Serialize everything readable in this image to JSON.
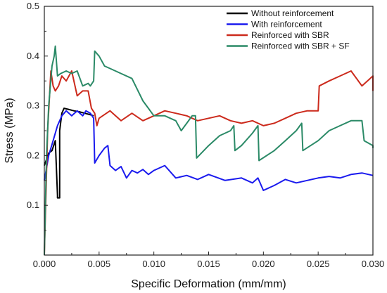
{
  "chart_data": {
    "type": "line",
    "title": "",
    "xlabel": "Specific Deformation (mm/mm)",
    "ylabel": "Stress (MPa)",
    "xlim": [
      0,
      0.03
    ],
    "ylim": [
      0,
      0.5
    ],
    "xticks": [
      "0.000",
      "0.005",
      "0.010",
      "0.015",
      "0.020",
      "0.025",
      "0.030"
    ],
    "yticks": [
      "0.1",
      "0.2",
      "0.3",
      "0.4",
      "0.5"
    ],
    "legend_position": "top-right",
    "grid": false,
    "series": [
      {
        "name": "Without reinforcement",
        "color": "#000000",
        "points": [
          [
            0.0,
            0.18
          ],
          [
            0.0004,
            0.205
          ],
          [
            0.0007,
            0.21
          ],
          [
            0.001,
            0.23
          ],
          [
            0.0012,
            0.12
          ],
          [
            0.0012,
            0.115
          ],
          [
            0.0014,
            0.115
          ],
          [
            0.0014,
            0.25
          ],
          [
            0.0016,
            0.285
          ],
          [
            0.0018,
            0.295
          ],
          [
            0.0022,
            0.293
          ],
          [
            0.0027,
            0.29
          ],
          [
            0.0032,
            0.288
          ],
          [
            0.0037,
            0.285
          ],
          [
            0.0042,
            0.282
          ],
          [
            0.0045,
            0.28
          ]
        ]
      },
      {
        "name": "With reinforcement",
        "color": "#1a1aee",
        "points": [
          [
            0.0,
            0.15
          ],
          [
            0.0004,
            0.2
          ],
          [
            0.0008,
            0.23
          ],
          [
            0.0012,
            0.26
          ],
          [
            0.0016,
            0.28
          ],
          [
            0.002,
            0.29
          ],
          [
            0.0025,
            0.28
          ],
          [
            0.003,
            0.29
          ],
          [
            0.0035,
            0.28
          ],
          [
            0.0038,
            0.29
          ],
          [
            0.0042,
            0.285
          ],
          [
            0.0045,
            0.275
          ],
          [
            0.0046,
            0.185
          ],
          [
            0.005,
            0.2
          ],
          [
            0.0055,
            0.215
          ],
          [
            0.0058,
            0.22
          ],
          [
            0.006,
            0.18
          ],
          [
            0.0065,
            0.17
          ],
          [
            0.007,
            0.178
          ],
          [
            0.0075,
            0.155
          ],
          [
            0.008,
            0.17
          ],
          [
            0.0085,
            0.165
          ],
          [
            0.009,
            0.172
          ],
          [
            0.0095,
            0.162
          ],
          [
            0.01,
            0.17
          ],
          [
            0.011,
            0.18
          ],
          [
            0.012,
            0.155
          ],
          [
            0.013,
            0.16
          ],
          [
            0.014,
            0.152
          ],
          [
            0.015,
            0.162
          ],
          [
            0.0165,
            0.15
          ],
          [
            0.018,
            0.155
          ],
          [
            0.019,
            0.145
          ],
          [
            0.0195,
            0.155
          ],
          [
            0.02,
            0.13
          ],
          [
            0.021,
            0.14
          ],
          [
            0.022,
            0.152
          ],
          [
            0.023,
            0.145
          ],
          [
            0.024,
            0.15
          ],
          [
            0.025,
            0.155
          ],
          [
            0.026,
            0.158
          ],
          [
            0.027,
            0.155
          ],
          [
            0.028,
            0.162
          ],
          [
            0.029,
            0.165
          ],
          [
            0.03,
            0.16
          ]
        ]
      },
      {
        "name": "Reinforced with SBR",
        "color": "#cc2a1c",
        "points": [
          [
            0.0,
            0.0
          ],
          [
            0.0003,
            0.25
          ],
          [
            0.0006,
            0.37
          ],
          [
            0.0008,
            0.34
          ],
          [
            0.001,
            0.33
          ],
          [
            0.0013,
            0.34
          ],
          [
            0.0016,
            0.36
          ],
          [
            0.002,
            0.35
          ],
          [
            0.0025,
            0.37
          ],
          [
            0.003,
            0.32
          ],
          [
            0.0035,
            0.33
          ],
          [
            0.004,
            0.33
          ],
          [
            0.0043,
            0.295
          ],
          [
            0.0046,
            0.285
          ],
          [
            0.0048,
            0.26
          ],
          [
            0.005,
            0.275
          ],
          [
            0.006,
            0.29
          ],
          [
            0.007,
            0.27
          ],
          [
            0.008,
            0.285
          ],
          [
            0.009,
            0.27
          ],
          [
            0.01,
            0.28
          ],
          [
            0.011,
            0.29
          ],
          [
            0.012,
            0.285
          ],
          [
            0.013,
            0.28
          ],
          [
            0.014,
            0.27
          ],
          [
            0.015,
            0.275
          ],
          [
            0.016,
            0.28
          ],
          [
            0.017,
            0.27
          ],
          [
            0.018,
            0.265
          ],
          [
            0.019,
            0.27
          ],
          [
            0.02,
            0.26
          ],
          [
            0.021,
            0.265
          ],
          [
            0.022,
            0.275
          ],
          [
            0.023,
            0.285
          ],
          [
            0.024,
            0.29
          ],
          [
            0.025,
            0.29
          ],
          [
            0.0251,
            0.34
          ],
          [
            0.026,
            0.35
          ],
          [
            0.027,
            0.36
          ],
          [
            0.028,
            0.37
          ],
          [
            0.0285,
            0.355
          ],
          [
            0.029,
            0.34
          ],
          [
            0.0295,
            0.35
          ],
          [
            0.03,
            0.36
          ],
          [
            0.03,
            0.33
          ]
        ]
      },
      {
        "name": "Reinforced with SBR + SF",
        "color": "#2b8a67",
        "points": [
          [
            0.0,
            0.0
          ],
          [
            0.0002,
            0.2
          ],
          [
            0.0004,
            0.3
          ],
          [
            0.0007,
            0.38
          ],
          [
            0.0009,
            0.4
          ],
          [
            0.001,
            0.42
          ],
          [
            0.0012,
            0.36
          ],
          [
            0.0015,
            0.365
          ],
          [
            0.002,
            0.37
          ],
          [
            0.0025,
            0.365
          ],
          [
            0.003,
            0.37
          ],
          [
            0.0035,
            0.34
          ],
          [
            0.004,
            0.345
          ],
          [
            0.0042,
            0.34
          ],
          [
            0.0045,
            0.35
          ],
          [
            0.0046,
            0.41
          ],
          [
            0.005,
            0.4
          ],
          [
            0.0055,
            0.38
          ],
          [
            0.006,
            0.375
          ],
          [
            0.007,
            0.365
          ],
          [
            0.008,
            0.355
          ],
          [
            0.009,
            0.31
          ],
          [
            0.0095,
            0.295
          ],
          [
            0.01,
            0.28
          ],
          [
            0.011,
            0.28
          ],
          [
            0.012,
            0.27
          ],
          [
            0.0125,
            0.25
          ],
          [
            0.013,
            0.265
          ],
          [
            0.0135,
            0.28
          ],
          [
            0.0138,
            0.28
          ],
          [
            0.0139,
            0.195
          ],
          [
            0.015,
            0.22
          ],
          [
            0.016,
            0.24
          ],
          [
            0.017,
            0.25
          ],
          [
            0.0173,
            0.26
          ],
          [
            0.0174,
            0.21
          ],
          [
            0.018,
            0.22
          ],
          [
            0.019,
            0.245
          ],
          [
            0.0195,
            0.26
          ],
          [
            0.0196,
            0.19
          ],
          [
            0.021,
            0.21
          ],
          [
            0.022,
            0.23
          ],
          [
            0.023,
            0.25
          ],
          [
            0.0235,
            0.265
          ],
          [
            0.0236,
            0.21
          ],
          [
            0.025,
            0.23
          ],
          [
            0.026,
            0.25
          ],
          [
            0.027,
            0.26
          ],
          [
            0.028,
            0.27
          ],
          [
            0.029,
            0.27
          ],
          [
            0.0292,
            0.23
          ],
          [
            0.03,
            0.22
          ],
          [
            0.03,
            0.215
          ]
        ]
      }
    ]
  }
}
